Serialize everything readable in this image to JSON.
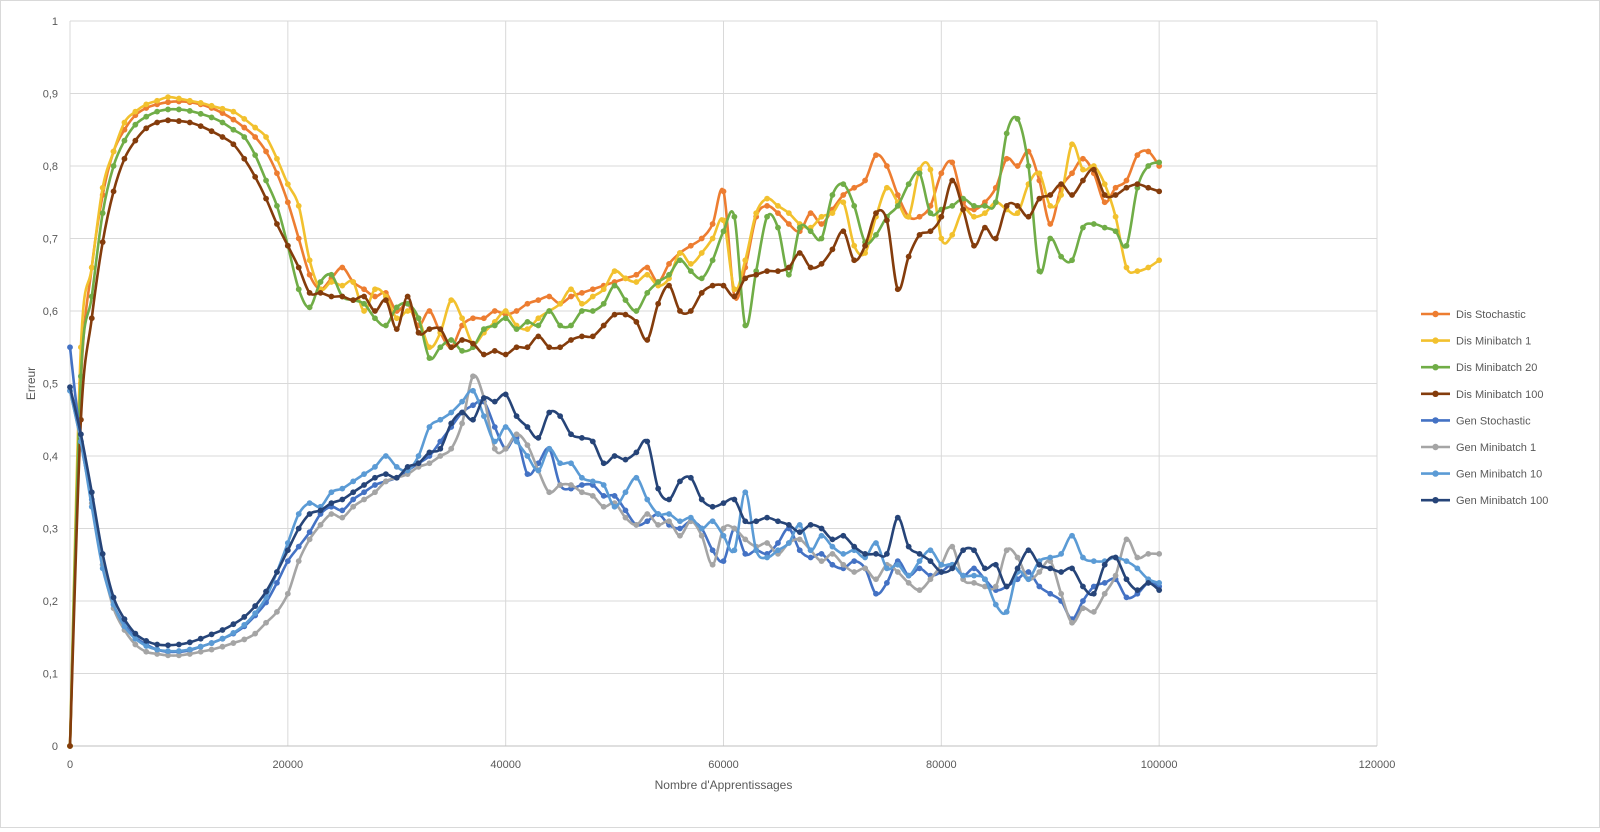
{
  "chart_data": {
    "type": "line",
    "title": "",
    "xlabel": "Nombre d'Apprentissages",
    "ylabel": "Erreur",
    "xlim": [
      0,
      120000
    ],
    "ylim": [
      0,
      1
    ],
    "x_ticks": [
      0,
      20000,
      40000,
      60000,
      80000,
      100000,
      120000
    ],
    "x_tick_labels": [
      "0",
      "20000",
      "40000",
      "60000",
      "80000",
      "100000",
      "120000"
    ],
    "y_ticks": [
      0,
      0.1,
      0.2,
      0.3,
      0.4,
      0.5,
      0.6,
      0.7,
      0.8,
      0.9,
      1
    ],
    "y_tick_labels": [
      "0",
      "0,1",
      "0,2",
      "0,3",
      "0,4",
      "0,5",
      "0,6",
      "0,7",
      "0,8",
      "0,9",
      "1"
    ],
    "grid": true,
    "legend_position": "right",
    "smooth": true,
    "markers": true,
    "x": [
      0,
      1000,
      2000,
      3000,
      4000,
      5000,
      6000,
      7000,
      8000,
      9000,
      10000,
      11000,
      12000,
      13000,
      14000,
      15000,
      16000,
      17000,
      18000,
      19000,
      20000,
      21000,
      22000,
      23000,
      24000,
      25000,
      26000,
      27000,
      28000,
      29000,
      30000,
      31000,
      32000,
      33000,
      34000,
      35000,
      36000,
      37000,
      38000,
      39000,
      40000,
      41000,
      42000,
      43000,
      44000,
      45000,
      46000,
      47000,
      48000,
      49000,
      50000,
      51000,
      52000,
      53000,
      54000,
      55000,
      56000,
      57000,
      58000,
      59000,
      60000,
      61000,
      62000,
      63000,
      64000,
      65000,
      66000,
      67000,
      68000,
      69000,
      70000,
      71000,
      72000,
      73000,
      74000,
      75000,
      76000,
      77000,
      78000,
      79000,
      80000,
      81000,
      82000,
      83000,
      84000,
      85000,
      86000,
      87000,
      88000,
      89000,
      90000,
      91000,
      92000,
      93000,
      94000,
      95000,
      96000,
      97000,
      98000,
      99000,
      100000
    ],
    "series": [
      {
        "name": "Dis Stochastic",
        "color": "#ED7D31",
        "values": [
          0.0,
          0.5,
          0.66,
          0.76,
          0.82,
          0.85,
          0.87,
          0.88,
          0.885,
          0.888,
          0.889,
          0.888,
          0.885,
          0.88,
          0.873,
          0.864,
          0.853,
          0.84,
          0.82,
          0.79,
          0.75,
          0.7,
          0.65,
          0.63,
          0.645,
          0.66,
          0.64,
          0.63,
          0.62,
          0.625,
          0.6,
          0.61,
          0.58,
          0.6,
          0.57,
          0.55,
          0.58,
          0.59,
          0.59,
          0.6,
          0.595,
          0.6,
          0.61,
          0.615,
          0.62,
          0.61,
          0.62,
          0.625,
          0.63,
          0.635,
          0.64,
          0.645,
          0.65,
          0.66,
          0.64,
          0.665,
          0.68,
          0.69,
          0.7,
          0.72,
          0.765,
          0.62,
          0.66,
          0.73,
          0.745,
          0.735,
          0.72,
          0.71,
          0.735,
          0.72,
          0.74,
          0.76,
          0.77,
          0.78,
          0.815,
          0.8,
          0.76,
          0.73,
          0.73,
          0.745,
          0.79,
          0.805,
          0.75,
          0.74,
          0.75,
          0.77,
          0.81,
          0.8,
          0.82,
          0.78,
          0.72,
          0.77,
          0.79,
          0.81,
          0.79,
          0.75,
          0.77,
          0.78,
          0.815,
          0.82,
          0.8
        ]
      },
      {
        "name": "Dis Minibatch 1",
        "color": "#F2C12E",
        "values": [
          0.0,
          0.55,
          0.66,
          0.77,
          0.82,
          0.86,
          0.875,
          0.885,
          0.89,
          0.895,
          0.893,
          0.89,
          0.887,
          0.883,
          0.879,
          0.875,
          0.865,
          0.853,
          0.84,
          0.81,
          0.775,
          0.745,
          0.67,
          0.63,
          0.64,
          0.635,
          0.64,
          0.6,
          0.63,
          0.62,
          0.59,
          0.6,
          0.59,
          0.55,
          0.57,
          0.615,
          0.59,
          0.555,
          0.57,
          0.585,
          0.6,
          0.58,
          0.575,
          0.59,
          0.6,
          0.61,
          0.63,
          0.61,
          0.62,
          0.63,
          0.655,
          0.645,
          0.64,
          0.65,
          0.635,
          0.645,
          0.68,
          0.665,
          0.68,
          0.7,
          0.725,
          0.63,
          0.67,
          0.735,
          0.755,
          0.745,
          0.735,
          0.72,
          0.715,
          0.73,
          0.735,
          0.75,
          0.69,
          0.68,
          0.73,
          0.77,
          0.75,
          0.73,
          0.795,
          0.795,
          0.7,
          0.705,
          0.74,
          0.73,
          0.735,
          0.75,
          0.74,
          0.735,
          0.775,
          0.79,
          0.745,
          0.76,
          0.83,
          0.795,
          0.8,
          0.775,
          0.73,
          0.66,
          0.655,
          0.66,
          0.67
        ]
      },
      {
        "name": "Dis Minibatch 20",
        "color": "#70AD47",
        "values": [
          0.0,
          0.51,
          0.62,
          0.735,
          0.8,
          0.835,
          0.857,
          0.868,
          0.875,
          0.878,
          0.878,
          0.876,
          0.872,
          0.867,
          0.86,
          0.85,
          0.84,
          0.815,
          0.78,
          0.745,
          0.69,
          0.63,
          0.605,
          0.64,
          0.65,
          0.62,
          0.615,
          0.61,
          0.59,
          0.58,
          0.605,
          0.61,
          0.59,
          0.535,
          0.55,
          0.56,
          0.545,
          0.55,
          0.575,
          0.58,
          0.59,
          0.575,
          0.585,
          0.58,
          0.6,
          0.58,
          0.58,
          0.6,
          0.6,
          0.61,
          0.635,
          0.615,
          0.6,
          0.625,
          0.64,
          0.65,
          0.67,
          0.655,
          0.645,
          0.67,
          0.71,
          0.73,
          0.58,
          0.655,
          0.73,
          0.715,
          0.65,
          0.715,
          0.71,
          0.7,
          0.76,
          0.775,
          0.745,
          0.695,
          0.705,
          0.73,
          0.745,
          0.775,
          0.79,
          0.735,
          0.74,
          0.745,
          0.755,
          0.745,
          0.745,
          0.75,
          0.845,
          0.865,
          0.8,
          0.655,
          0.7,
          0.675,
          0.67,
          0.715,
          0.72,
          0.715,
          0.71,
          0.69,
          0.77,
          0.8,
          0.805
        ]
      },
      {
        "name": "Dis Minibatch 100",
        "color": "#843C0C",
        "values": [
          0.0,
          0.45,
          0.59,
          0.695,
          0.765,
          0.81,
          0.835,
          0.852,
          0.86,
          0.863,
          0.862,
          0.86,
          0.855,
          0.848,
          0.84,
          0.83,
          0.81,
          0.785,
          0.755,
          0.72,
          0.69,
          0.66,
          0.625,
          0.625,
          0.62,
          0.62,
          0.615,
          0.62,
          0.6,
          0.615,
          0.575,
          0.62,
          0.57,
          0.575,
          0.575,
          0.55,
          0.56,
          0.555,
          0.54,
          0.545,
          0.54,
          0.55,
          0.55,
          0.565,
          0.55,
          0.55,
          0.56,
          0.565,
          0.565,
          0.58,
          0.595,
          0.595,
          0.585,
          0.56,
          0.61,
          0.635,
          0.6,
          0.6,
          0.625,
          0.635,
          0.635,
          0.62,
          0.645,
          0.65,
          0.655,
          0.655,
          0.66,
          0.68,
          0.66,
          0.665,
          0.685,
          0.71,
          0.67,
          0.69,
          0.735,
          0.725,
          0.63,
          0.675,
          0.705,
          0.71,
          0.73,
          0.78,
          0.74,
          0.69,
          0.715,
          0.7,
          0.745,
          0.745,
          0.73,
          0.755,
          0.76,
          0.775,
          0.76,
          0.78,
          0.795,
          0.76,
          0.76,
          0.77,
          0.775,
          0.77,
          0.765
        ]
      },
      {
        "name": "Gen Stochastic",
        "color": "#4472C4",
        "values": [
          0.55,
          0.42,
          0.34,
          0.25,
          0.195,
          0.168,
          0.15,
          0.14,
          0.133,
          0.13,
          0.13,
          0.132,
          0.137,
          0.142,
          0.148,
          0.155,
          0.165,
          0.18,
          0.198,
          0.225,
          0.255,
          0.275,
          0.295,
          0.32,
          0.33,
          0.325,
          0.34,
          0.35,
          0.36,
          0.365,
          0.37,
          0.38,
          0.39,
          0.4,
          0.42,
          0.44,
          0.46,
          0.47,
          0.475,
          0.44,
          0.41,
          0.425,
          0.375,
          0.39,
          0.41,
          0.36,
          0.355,
          0.36,
          0.36,
          0.345,
          0.345,
          0.325,
          0.305,
          0.31,
          0.32,
          0.305,
          0.3,
          0.31,
          0.3,
          0.27,
          0.255,
          0.3,
          0.265,
          0.27,
          0.265,
          0.28,
          0.3,
          0.27,
          0.26,
          0.265,
          0.25,
          0.245,
          0.255,
          0.245,
          0.21,
          0.225,
          0.255,
          0.235,
          0.245,
          0.235,
          0.24,
          0.25,
          0.235,
          0.245,
          0.23,
          0.215,
          0.22,
          0.23,
          0.24,
          0.22,
          0.21,
          0.2,
          0.175,
          0.2,
          0.22,
          0.225,
          0.23,
          0.205,
          0.21,
          0.225,
          0.22
        ]
      },
      {
        "name": "Gen Minibatch 1",
        "color": "#A5A5A5",
        "values": [
          0.49,
          0.42,
          0.335,
          0.25,
          0.19,
          0.16,
          0.14,
          0.13,
          0.127,
          0.125,
          0.125,
          0.127,
          0.13,
          0.133,
          0.137,
          0.142,
          0.147,
          0.155,
          0.17,
          0.185,
          0.21,
          0.255,
          0.285,
          0.305,
          0.32,
          0.315,
          0.33,
          0.34,
          0.35,
          0.365,
          0.37,
          0.375,
          0.385,
          0.39,
          0.4,
          0.41,
          0.445,
          0.51,
          0.48,
          0.41,
          0.41,
          0.43,
          0.415,
          0.38,
          0.35,
          0.36,
          0.36,
          0.35,
          0.345,
          0.33,
          0.335,
          0.315,
          0.305,
          0.32,
          0.305,
          0.31,
          0.29,
          0.31,
          0.29,
          0.25,
          0.3,
          0.3,
          0.285,
          0.275,
          0.28,
          0.265,
          0.28,
          0.285,
          0.27,
          0.255,
          0.265,
          0.25,
          0.24,
          0.245,
          0.23,
          0.25,
          0.24,
          0.225,
          0.215,
          0.23,
          0.25,
          0.275,
          0.23,
          0.225,
          0.22,
          0.22,
          0.27,
          0.26,
          0.23,
          0.24,
          0.255,
          0.21,
          0.17,
          0.19,
          0.185,
          0.21,
          0.235,
          0.285,
          0.26,
          0.265,
          0.265
        ]
      },
      {
        "name": "Gen Minibatch 10",
        "color": "#5B9BD5",
        "values": [
          0.49,
          0.42,
          0.33,
          0.245,
          0.195,
          0.165,
          0.148,
          0.138,
          0.133,
          0.131,
          0.131,
          0.133,
          0.137,
          0.142,
          0.148,
          0.156,
          0.167,
          0.183,
          0.205,
          0.24,
          0.28,
          0.32,
          0.335,
          0.33,
          0.35,
          0.355,
          0.365,
          0.375,
          0.385,
          0.4,
          0.385,
          0.38,
          0.4,
          0.44,
          0.45,
          0.46,
          0.475,
          0.49,
          0.455,
          0.42,
          0.44,
          0.42,
          0.4,
          0.38,
          0.41,
          0.39,
          0.39,
          0.37,
          0.365,
          0.36,
          0.33,
          0.35,
          0.37,
          0.34,
          0.32,
          0.32,
          0.31,
          0.315,
          0.3,
          0.31,
          0.29,
          0.27,
          0.35,
          0.27,
          0.26,
          0.27,
          0.28,
          0.305,
          0.27,
          0.29,
          0.275,
          0.265,
          0.27,
          0.26,
          0.28,
          0.245,
          0.25,
          0.235,
          0.255,
          0.27,
          0.25,
          0.25,
          0.235,
          0.235,
          0.23,
          0.195,
          0.185,
          0.24,
          0.23,
          0.255,
          0.26,
          0.265,
          0.29,
          0.26,
          0.255,
          0.255,
          0.26,
          0.255,
          0.245,
          0.23,
          0.225
        ]
      },
      {
        "name": "Gen Minibatch 100",
        "color": "#264478",
        "values": [
          0.495,
          0.43,
          0.35,
          0.265,
          0.205,
          0.175,
          0.155,
          0.145,
          0.14,
          0.139,
          0.14,
          0.143,
          0.148,
          0.154,
          0.16,
          0.168,
          0.178,
          0.193,
          0.213,
          0.24,
          0.27,
          0.3,
          0.32,
          0.325,
          0.335,
          0.34,
          0.35,
          0.36,
          0.37,
          0.375,
          0.37,
          0.385,
          0.39,
          0.405,
          0.41,
          0.445,
          0.46,
          0.45,
          0.48,
          0.475,
          0.485,
          0.455,
          0.44,
          0.425,
          0.46,
          0.455,
          0.43,
          0.425,
          0.42,
          0.39,
          0.4,
          0.395,
          0.405,
          0.42,
          0.355,
          0.34,
          0.365,
          0.37,
          0.34,
          0.33,
          0.335,
          0.34,
          0.31,
          0.31,
          0.315,
          0.31,
          0.305,
          0.295,
          0.305,
          0.3,
          0.285,
          0.29,
          0.275,
          0.265,
          0.265,
          0.265,
          0.315,
          0.275,
          0.265,
          0.255,
          0.24,
          0.245,
          0.27,
          0.27,
          0.245,
          0.25,
          0.22,
          0.245,
          0.27,
          0.25,
          0.245,
          0.24,
          0.245,
          0.22,
          0.21,
          0.25,
          0.26,
          0.23,
          0.215,
          0.225,
          0.215
        ]
      }
    ]
  }
}
